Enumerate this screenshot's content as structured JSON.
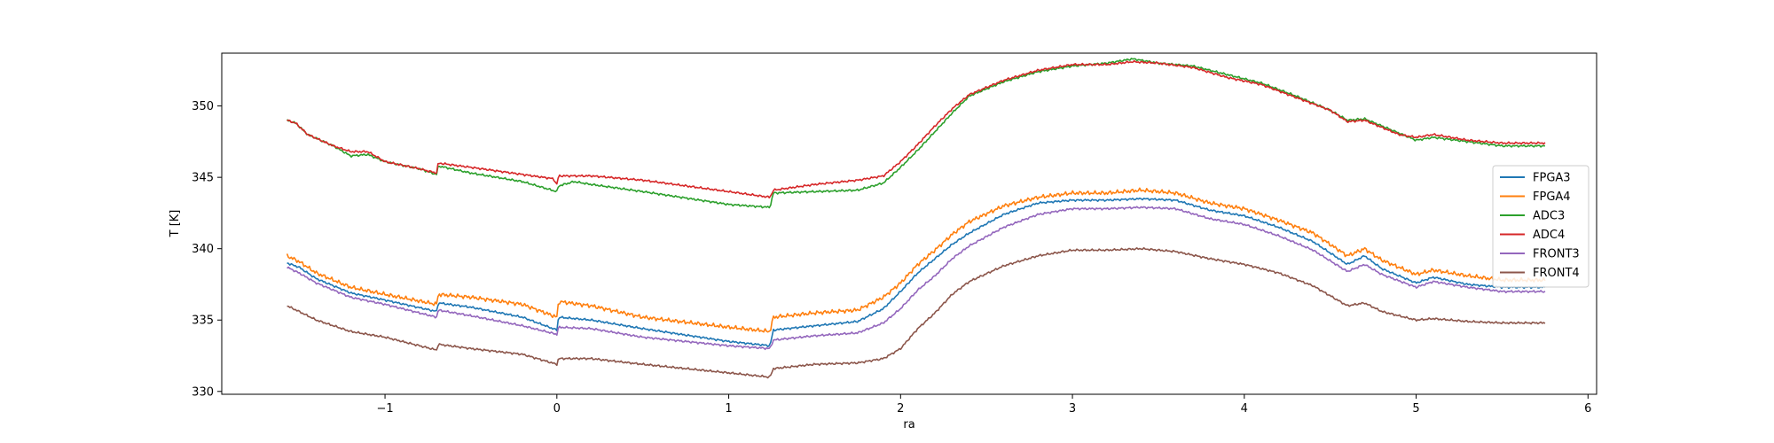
{
  "chart_data": {
    "type": "line",
    "title": "",
    "xlabel": "ra",
    "ylabel": "T [K]",
    "xlim": [
      -1.95,
      6.05
    ],
    "ylim": [
      329.8,
      353.7
    ],
    "xticks": [
      -1,
      0,
      1,
      2,
      3,
      4,
      5,
      6
    ],
    "xtick_labels": [
      "−1",
      "0",
      "1",
      "2",
      "3",
      "4",
      "5",
      "6"
    ],
    "yticks": [
      330,
      335,
      340,
      345,
      350
    ],
    "ytick_labels": [
      "330",
      "335",
      "340",
      "345",
      "350"
    ],
    "grid": false,
    "legend_position": "right",
    "series": [
      {
        "name": "FPGA3",
        "color": "#1f77b4",
        "x": [
          -1.57,
          -1.5,
          -1.4,
          -1.2,
          -1.0,
          -0.7,
          -0.69,
          -0.5,
          -0.2,
          0.0,
          0.01,
          0.2,
          0.5,
          1.0,
          1.24,
          1.26,
          1.5,
          1.75,
          1.9,
          2.0,
          2.1,
          2.2,
          2.3,
          2.4,
          2.6,
          2.8,
          3.0,
          3.2,
          3.4,
          3.6,
          3.8,
          4.0,
          4.2,
          4.4,
          4.6,
          4.7,
          4.8,
          5.0,
          5.1,
          5.3,
          5.5,
          5.75
        ],
        "y": [
          339.0,
          338.7,
          337.9,
          336.9,
          336.4,
          335.6,
          336.2,
          335.9,
          335.2,
          334.3,
          335.2,
          335.0,
          334.4,
          333.5,
          333.2,
          334.3,
          334.6,
          334.9,
          335.8,
          337.0,
          338.3,
          339.3,
          340.3,
          341.1,
          342.4,
          343.2,
          343.4,
          343.4,
          343.5,
          343.4,
          342.7,
          342.3,
          341.5,
          340.5,
          338.9,
          339.5,
          338.6,
          337.6,
          338.0,
          337.5,
          337.3,
          337.3
        ]
      },
      {
        "name": "FPGA4",
        "color": "#ff7f0e",
        "x": [
          -1.57,
          -1.5,
          -1.4,
          -1.2,
          -1.0,
          -0.7,
          -0.69,
          -0.5,
          -0.2,
          0.0,
          0.01,
          0.2,
          0.5,
          1.0,
          1.24,
          1.26,
          1.5,
          1.75,
          1.9,
          2.0,
          2.1,
          2.2,
          2.3,
          2.4,
          2.6,
          2.8,
          3.0,
          3.2,
          3.4,
          3.6,
          3.8,
          4.0,
          4.2,
          4.4,
          4.6,
          4.7,
          4.8,
          5.0,
          5.1,
          5.3,
          5.5,
          5.75
        ],
        "y": [
          339.5,
          339.1,
          338.3,
          337.3,
          336.8,
          336.1,
          336.8,
          336.6,
          336.1,
          335.2,
          336.3,
          336.0,
          335.2,
          334.5,
          334.2,
          335.2,
          335.5,
          335.7,
          336.6,
          337.6,
          338.9,
          339.9,
          341.0,
          341.9,
          343.0,
          343.6,
          343.9,
          343.9,
          344.1,
          343.9,
          343.2,
          342.8,
          342.0,
          341.1,
          339.5,
          340.0,
          339.2,
          338.2,
          338.5,
          338.1,
          337.8,
          337.8
        ]
      },
      {
        "name": "ADC3",
        "color": "#2ca02c",
        "x": [
          -1.57,
          -1.52,
          -1.45,
          -1.3,
          -1.2,
          -1.1,
          -1.0,
          -0.8,
          -0.7,
          -0.69,
          -0.5,
          -0.2,
          0.0,
          0.01,
          0.1,
          0.2,
          0.5,
          1.0,
          1.24,
          1.26,
          1.5,
          1.75,
          1.9,
          2.0,
          2.1,
          2.2,
          2.3,
          2.4,
          2.6,
          2.8,
          3.0,
          3.2,
          3.35,
          3.5,
          3.7,
          3.9,
          4.1,
          4.3,
          4.5,
          4.6,
          4.7,
          4.9,
          5.0,
          5.1,
          5.3,
          5.5,
          5.75
        ],
        "y": [
          349.0,
          348.8,
          348.0,
          347.2,
          346.5,
          346.6,
          346.1,
          345.6,
          345.2,
          345.8,
          345.3,
          344.7,
          344.0,
          344.4,
          344.7,
          344.5,
          344.0,
          343.1,
          342.9,
          343.9,
          344.0,
          344.1,
          344.6,
          345.7,
          346.9,
          348.2,
          349.5,
          350.7,
          351.7,
          352.4,
          352.8,
          353.0,
          353.3,
          353.0,
          352.8,
          352.2,
          351.6,
          350.7,
          349.7,
          349.0,
          349.1,
          348.1,
          347.6,
          347.8,
          347.5,
          347.2,
          347.2
        ]
      },
      {
        "name": "ADC4",
        "color": "#d62728",
        "x": [
          -1.57,
          -1.52,
          -1.45,
          -1.3,
          -1.2,
          -1.1,
          -1.0,
          -0.8,
          -0.7,
          -0.69,
          -0.5,
          -0.2,
          -0.02,
          0.0,
          0.01,
          0.2,
          0.5,
          1.0,
          1.24,
          1.26,
          1.5,
          1.75,
          1.9,
          2.0,
          2.1,
          2.2,
          2.3,
          2.4,
          2.6,
          2.8,
          3.0,
          3.2,
          3.35,
          3.5,
          3.7,
          3.9,
          4.1,
          4.3,
          4.5,
          4.6,
          4.7,
          4.9,
          5.0,
          5.1,
          5.3,
          5.5,
          5.75
        ],
        "y": [
          349.0,
          348.8,
          348.0,
          347.2,
          346.8,
          346.8,
          346.1,
          345.6,
          345.3,
          346.0,
          345.7,
          345.2,
          344.9,
          344.5,
          345.1,
          345.1,
          344.8,
          344.0,
          343.6,
          344.1,
          344.5,
          344.8,
          345.1,
          346.1,
          347.3,
          348.6,
          349.8,
          350.8,
          351.8,
          352.5,
          352.9,
          352.9,
          353.1,
          353.0,
          352.7,
          352.0,
          351.5,
          350.6,
          349.7,
          348.9,
          349.0,
          348.0,
          347.8,
          348.0,
          347.6,
          347.4,
          347.4
        ]
      },
      {
        "name": "FRONT3",
        "color": "#9467bd",
        "x": [
          -1.57,
          -1.5,
          -1.4,
          -1.2,
          -1.0,
          -0.7,
          -0.69,
          -0.5,
          -0.2,
          0.0,
          0.01,
          0.2,
          0.5,
          1.0,
          1.24,
          1.26,
          1.5,
          1.75,
          1.9,
          2.0,
          2.1,
          2.2,
          2.3,
          2.4,
          2.6,
          2.8,
          3.0,
          3.2,
          3.4,
          3.6,
          3.8,
          4.0,
          4.2,
          4.4,
          4.6,
          4.7,
          4.8,
          5.0,
          5.1,
          5.3,
          5.5,
          5.75
        ],
        "y": [
          338.7,
          338.3,
          337.6,
          336.6,
          336.1,
          335.2,
          335.7,
          335.3,
          334.6,
          334.0,
          334.5,
          334.4,
          333.8,
          333.2,
          333.0,
          333.6,
          333.9,
          334.1,
          334.8,
          335.8,
          337.1,
          338.1,
          339.3,
          340.2,
          341.5,
          342.4,
          342.8,
          342.8,
          342.9,
          342.8,
          342.1,
          341.7,
          340.9,
          339.9,
          338.4,
          338.9,
          338.2,
          337.3,
          337.7,
          337.3,
          337.0,
          337.0
        ]
      },
      {
        "name": "FRONT4",
        "color": "#8c564b",
        "x": [
          -1.57,
          -1.5,
          -1.4,
          -1.2,
          -1.0,
          -0.7,
          -0.69,
          -0.5,
          -0.2,
          0.0,
          0.01,
          0.2,
          0.5,
          1.0,
          1.24,
          1.26,
          1.5,
          1.75,
          1.9,
          2.0,
          2.1,
          2.2,
          2.3,
          2.4,
          2.6,
          2.8,
          3.0,
          3.2,
          3.4,
          3.6,
          3.8,
          4.0,
          4.2,
          4.4,
          4.6,
          4.7,
          4.8,
          5.0,
          5.1,
          5.3,
          5.5,
          5.75
        ],
        "y": [
          336.0,
          335.6,
          335.0,
          334.2,
          333.8,
          332.9,
          333.3,
          333.0,
          332.6,
          331.9,
          332.3,
          332.3,
          331.9,
          331.3,
          331.0,
          331.6,
          331.9,
          332.0,
          332.3,
          333.0,
          334.4,
          335.5,
          336.8,
          337.7,
          338.8,
          339.5,
          339.9,
          339.9,
          340.0,
          339.8,
          339.3,
          338.9,
          338.3,
          337.4,
          336.0,
          336.2,
          335.6,
          335.0,
          335.1,
          334.9,
          334.8,
          334.8
        ]
      }
    ]
  }
}
